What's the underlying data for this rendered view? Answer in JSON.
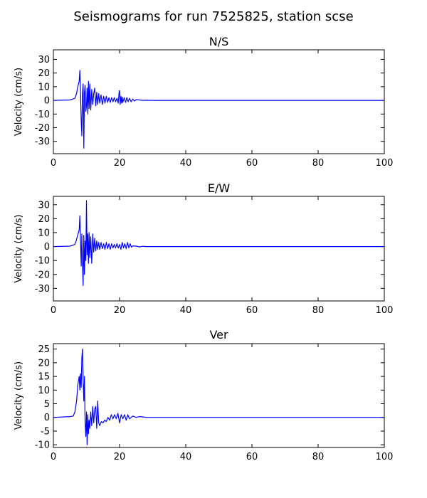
{
  "figure": {
    "title": "Seismograms for run 7525825, station scse"
  },
  "chart_data": [
    {
      "type": "line",
      "title": "N/S",
      "xlabel": "",
      "ylabel": "Velocity (cm/s)",
      "xlim": [
        0,
        100
      ],
      "ylim": [
        -39,
        37
      ],
      "xticks": [
        0,
        20,
        40,
        60,
        80,
        100
      ],
      "yticks": [
        -30,
        -20,
        -10,
        0,
        10,
        20,
        30
      ],
      "series": [
        {
          "color": "#0000ff",
          "x": [
            0,
            5,
            6.5,
            7,
            7.3,
            7.6,
            7.8,
            8.0,
            8.2,
            8.4,
            8.6,
            8.8,
            9.0,
            9.2,
            9.4,
            9.6,
            9.8,
            10.0,
            10.2,
            10.4,
            10.6,
            10.8,
            11.0,
            11.3,
            11.6,
            11.9,
            12.2,
            12.5,
            12.8,
            13.1,
            13.4,
            13.7,
            14.0,
            14.4,
            14.8,
            15.2,
            15.6,
            16.0,
            16.4,
            16.8,
            17.2,
            17.6,
            18.0,
            18.4,
            18.8,
            19.2,
            19.6,
            19.9,
            20.0,
            20.2,
            20.4,
            20.6,
            20.8,
            21.0,
            21.4,
            21.8,
            22.2,
            22.6,
            23.0,
            23.5,
            24.0,
            24.5,
            25.0,
            26.0,
            27.0,
            28.0,
            30.0,
            40.0,
            60.0,
            80.0,
            100.0
          ],
          "y": [
            0,
            0.3,
            1.5,
            5,
            9,
            12,
            14,
            22,
            8,
            -15,
            -26,
            5,
            12,
            -35,
            6,
            11,
            -8,
            -4,
            9,
            -10,
            14,
            -6,
            12,
            -7,
            8,
            -3,
            5,
            9,
            -4,
            6,
            -3,
            5,
            -2,
            4,
            -3,
            3,
            -2,
            3,
            -1.5,
            2,
            -1.5,
            2,
            -1,
            2,
            -1,
            1.5,
            -2,
            7,
            7,
            -3,
            3,
            -2,
            2.5,
            -1.5,
            2,
            -1.5,
            2,
            -1,
            1.5,
            -1,
            1,
            -0.5,
            0.5,
            0.3,
            0,
            0.1,
            0,
            0,
            0,
            0,
            0
          ]
        }
      ]
    },
    {
      "type": "line",
      "title": "E/W",
      "xlabel": "",
      "ylabel": "Velocity (cm/s)",
      "xlim": [
        0,
        100
      ],
      "ylim": [
        -39,
        36
      ],
      "xticks": [
        0,
        20,
        40,
        60,
        80,
        100
      ],
      "yticks": [
        -30,
        -20,
        -10,
        0,
        10,
        20,
        30
      ],
      "series": [
        {
          "color": "#0000ff",
          "x": [
            0,
            5,
            6.5,
            7,
            7.3,
            7.6,
            7.8,
            8.0,
            8.2,
            8.4,
            8.6,
            8.8,
            9.0,
            9.2,
            9.4,
            9.6,
            9.8,
            10.0,
            10.2,
            10.4,
            10.6,
            10.8,
            11.0,
            11.3,
            11.6,
            11.9,
            12.2,
            12.5,
            12.8,
            13.1,
            13.4,
            13.7,
            14.0,
            14.4,
            14.8,
            15.2,
            15.6,
            16.0,
            16.4,
            16.8,
            17.2,
            17.6,
            18.0,
            18.4,
            18.8,
            19.2,
            19.6,
            20.0,
            20.4,
            20.8,
            21.2,
            21.6,
            22.0,
            22.4,
            22.8,
            23.2,
            23.6,
            24.0,
            25.0,
            26.0,
            27.0,
            28.0,
            30.0,
            40.0,
            60.0,
            80.0,
            100.0
          ],
          "y": [
            0,
            0.3,
            1.5,
            5,
            8,
            10,
            12,
            22,
            6,
            -14,
            9,
            -12,
            -28,
            8,
            -20,
            4,
            -10,
            33,
            -6,
            9,
            -12,
            10,
            -8,
            7,
            -12,
            9,
            -4,
            6,
            -3,
            4,
            -2,
            3,
            -2,
            3,
            -1.5,
            2,
            -2,
            3,
            -1.5,
            2,
            -2,
            2,
            -1,
            1.5,
            -1,
            2,
            -1,
            1.5,
            -2,
            3,
            -1,
            2,
            -1.5,
            3,
            -1,
            2,
            -0.5,
            0.5,
            0.3,
            -0.3,
            0.2,
            0,
            0,
            0,
            0,
            0,
            0
          ]
        }
      ]
    },
    {
      "type": "line",
      "title": "Ver",
      "xlabel": "",
      "ylabel": "Velocity (cm/s)",
      "xlim": [
        0,
        100
      ],
      "ylim": [
        -11,
        27
      ],
      "xticks": [
        0,
        20,
        40,
        60,
        80,
        100
      ],
      "yticks": [
        -10,
        -5,
        0,
        5,
        10,
        15,
        20,
        25
      ],
      "series": [
        {
          "color": "#0000ff",
          "x": [
            0,
            5,
            6.0,
            6.5,
            7.0,
            7.4,
            7.8,
            8.0,
            8.2,
            8.4,
            8.6,
            8.8,
            9.0,
            9.2,
            9.4,
            9.6,
            9.8,
            10.0,
            10.2,
            10.4,
            10.6,
            10.8,
            11.0,
            11.3,
            11.6,
            11.9,
            12.2,
            12.5,
            12.8,
            13.1,
            13.4,
            13.7,
            14.0,
            14.5,
            15.0,
            15.5,
            16.0,
            16.5,
            17.0,
            17.5,
            18.0,
            18.5,
            19.0,
            19.5,
            20.0,
            20.5,
            21.0,
            21.5,
            22.0,
            22.5,
            23.0,
            24.0,
            25.0,
            26.0,
            27.0,
            28.0,
            30.0,
            40.0,
            60.0,
            80.0,
            100.0
          ],
          "y": [
            0,
            0.3,
            0.5,
            2,
            6,
            12,
            15,
            10,
            16,
            11,
            22,
            25,
            14,
            6,
            15,
            -2,
            -7,
            2,
            -10,
            1,
            -6,
            -1,
            -4,
            2,
            -3,
            4,
            -2,
            3,
            4,
            -4,
            6,
            -2,
            -3,
            -1.5,
            -2,
            -1,
            -1.5,
            0,
            -1,
            1,
            -0.5,
            1,
            -0.5,
            1.5,
            -2,
            1,
            -0.5,
            1,
            -1,
            1,
            -0.5,
            0.5,
            0,
            0.3,
            0.2,
            0,
            0,
            0,
            0,
            0,
            0
          ]
        }
      ]
    }
  ]
}
